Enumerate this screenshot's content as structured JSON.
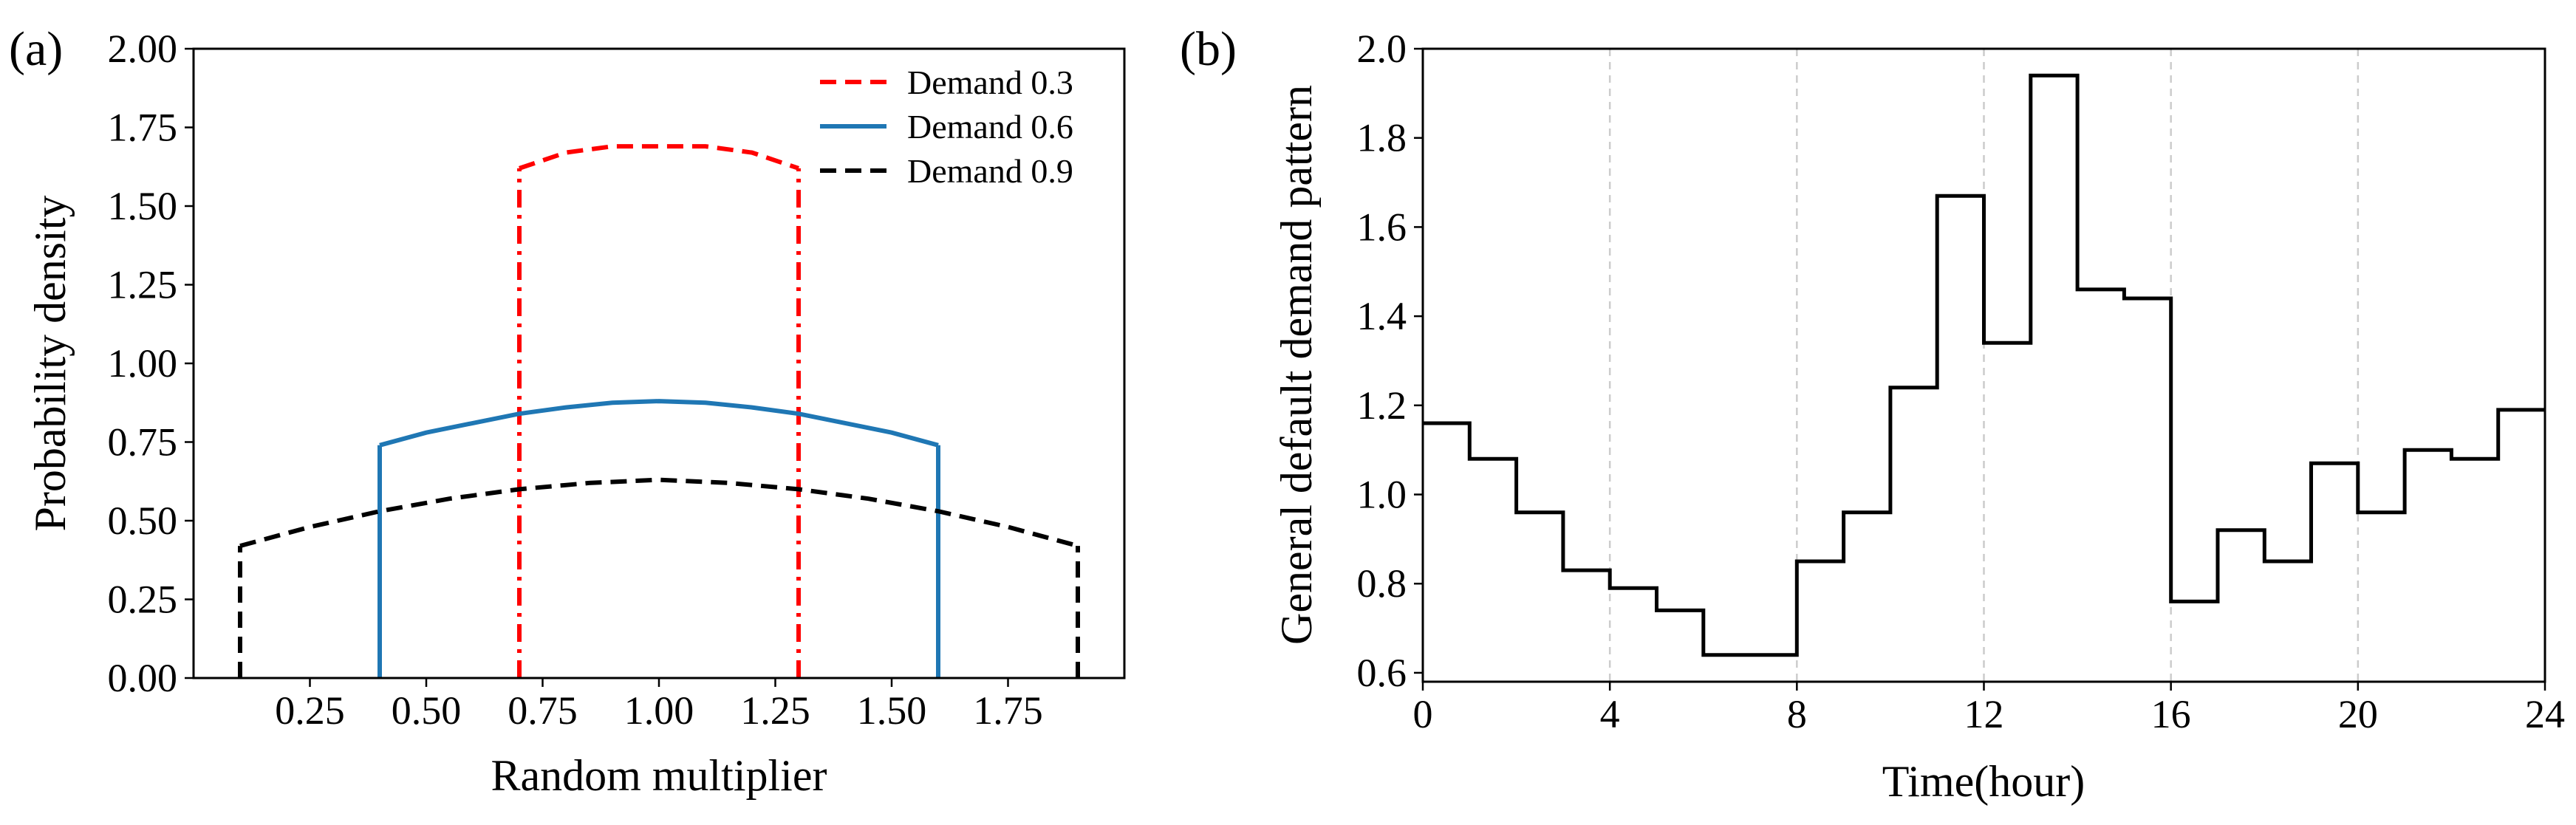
{
  "figure": {
    "panels": [
      "(a)",
      "(b)"
    ]
  },
  "chart_data": [
    {
      "type": "line",
      "panel_label": "(a)",
      "xlabel": "Random multiplier",
      "ylabel": "Probability density",
      "xlim": [
        0.0,
        2.0
      ],
      "ylim": [
        0.0,
        2.0
      ],
      "xticks": [
        0.25,
        0.5,
        0.75,
        1.0,
        1.25,
        1.5,
        1.75
      ],
      "xtick_labels": [
        "0.25",
        "0.50",
        "0.75",
        "1.00",
        "1.25",
        "1.50",
        "1.75"
      ],
      "yticks": [
        0.0,
        0.25,
        0.5,
        0.75,
        1.0,
        1.25,
        1.5,
        1.75,
        2.0
      ],
      "ytick_labels": [
        "0.00",
        "0.25",
        "0.50",
        "0.75",
        "1.00",
        "1.25",
        "1.50",
        "1.75",
        "2.00"
      ],
      "grid": false,
      "legend": "top-right",
      "series": [
        {
          "name": "Demand 0.3",
          "color": "#ff0000",
          "style": "dashed",
          "edge_style": "dashdot",
          "x": [
            0.7,
            0.8,
            0.9,
            1.0,
            1.1,
            1.2,
            1.3
          ],
          "y": [
            1.62,
            1.67,
            1.69,
            1.69,
            1.69,
            1.67,
            1.62
          ],
          "bounds": [
            0.7,
            1.3
          ]
        },
        {
          "name": "Demand 0.6",
          "color": "#1f77b4",
          "style": "solid",
          "edge_style": "solid",
          "x": [
            0.4,
            0.5,
            0.6,
            0.7,
            0.8,
            0.9,
            1.0,
            1.1,
            1.2,
            1.3,
            1.4,
            1.5,
            1.6
          ],
          "y": [
            0.74,
            0.78,
            0.81,
            0.84,
            0.86,
            0.875,
            0.88,
            0.875,
            0.86,
            0.84,
            0.81,
            0.78,
            0.74
          ],
          "bounds": [
            0.4,
            1.6
          ]
        },
        {
          "name": "Demand 0.9",
          "color": "#000000",
          "style": "dashed",
          "edge_style": "dashed",
          "x": [
            0.1,
            0.25,
            0.4,
            0.55,
            0.7,
            0.85,
            1.0,
            1.15,
            1.3,
            1.45,
            1.6,
            1.75,
            1.9
          ],
          "y": [
            0.42,
            0.48,
            0.53,
            0.57,
            0.6,
            0.62,
            0.63,
            0.62,
            0.6,
            0.57,
            0.53,
            0.48,
            0.42
          ],
          "bounds": [
            0.1,
            1.9
          ]
        }
      ]
    },
    {
      "type": "line",
      "panel_label": "(b)",
      "xlabel": "Time(hour)",
      "ylabel": "General default demand pattern",
      "xlim": [
        0,
        24
      ],
      "ylim": [
        0.58,
        2.0
      ],
      "xticks": [
        0,
        4,
        8,
        12,
        16,
        20,
        24
      ],
      "xtick_labels": [
        "0",
        "4",
        "8",
        "12",
        "16",
        "20",
        "24"
      ],
      "yticks": [
        0.6,
        0.8,
        1.0,
        1.2,
        1.4,
        1.6,
        1.8,
        2.0
      ],
      "ytick_labels": [
        "0.6",
        "0.8",
        "1.0",
        "1.2",
        "1.4",
        "1.6",
        "1.8",
        "2.0"
      ],
      "grid": "vertical dashed at 4, 8, 12, 16, 20",
      "step": "post",
      "series": [
        {
          "color": "#000000",
          "x": [
            0,
            1,
            2,
            3,
            4,
            5,
            6,
            7,
            8,
            9,
            10,
            11,
            12,
            13,
            14,
            15,
            16,
            17,
            18,
            19,
            20,
            21,
            22,
            23,
            24
          ],
          "y": [
            1.16,
            1.08,
            0.96,
            0.83,
            0.79,
            0.74,
            0.64,
            0.64,
            0.85,
            0.96,
            1.24,
            1.67,
            1.34,
            1.94,
            1.46,
            1.44,
            0.76,
            0.92,
            0.85,
            1.07,
            0.96,
            1.1,
            1.08,
            1.19,
            1.19
          ]
        }
      ]
    }
  ]
}
